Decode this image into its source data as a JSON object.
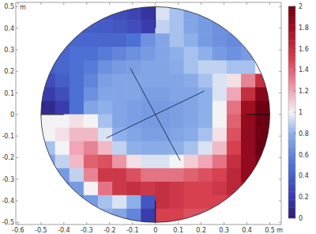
{
  "chart_data": {
    "type": "heatmap",
    "xlabel": "m",
    "ylabel": "m",
    "xlim": [
      -0.61,
      0.55
    ],
    "ylim": [
      -0.51,
      0.52
    ],
    "xticks": [
      -0.6,
      -0.5,
      -0.4,
      -0.3,
      -0.2,
      -0.1,
      0,
      0.1,
      0.2,
      0.3,
      0.4,
      0.5
    ],
    "yticks": [
      -0.5,
      -0.4,
      -0.3,
      -0.2,
      -0.1,
      0,
      0.1,
      0.2,
      0.3,
      0.4,
      0.5
    ],
    "grid": false,
    "x": [
      -0.46875,
      -0.40625,
      -0.34375,
      -0.28125,
      -0.21875,
      -0.15625,
      -0.09375,
      -0.03125,
      0.03125,
      0.09375,
      0.15625,
      0.21875,
      0.28125,
      0.34375,
      0.40625,
      0.46875
    ],
    "y": [
      0.46875,
      0.40625,
      0.34375,
      0.28125,
      0.21875,
      0.15625,
      0.09375,
      0.03125,
      -0.03125,
      -0.09375,
      -0.15625,
      -0.21875,
      -0.28125,
      -0.34375,
      -0.40625,
      -0.46875
    ],
    "cells": [
      [
        null,
        null,
        null,
        null,
        0.35,
        0.3,
        0.25,
        0.15,
        0.95,
        0.85,
        0.75,
        0.7,
        null,
        null,
        null,
        null
      ],
      [
        null,
        0.4,
        0.4,
        0.4,
        0.38,
        0.35,
        0.3,
        0.2,
        0.9,
        0.85,
        0.75,
        0.7,
        0.65,
        0.65,
        0.65,
        null
      ],
      [
        null,
        0.45,
        0.45,
        0.45,
        0.45,
        0.45,
        0.5,
        0.65,
        0.75,
        0.85,
        0.8,
        0.7,
        0.65,
        0.62,
        0.65,
        null
      ],
      [
        null,
        0.45,
        0.5,
        0.5,
        0.55,
        0.6,
        0.65,
        0.7,
        0.75,
        0.8,
        0.85,
        0.8,
        0.7,
        0.65,
        0.7,
        null
      ],
      [
        0.4,
        0.45,
        0.5,
        0.55,
        0.65,
        0.7,
        0.72,
        0.75,
        0.75,
        0.78,
        0.85,
        0.9,
        0.9,
        0.85,
        0.85,
        1.0
      ],
      [
        0.3,
        0.4,
        0.5,
        0.6,
        0.72,
        0.75,
        0.75,
        0.75,
        0.75,
        0.75,
        0.78,
        0.85,
        0.95,
        1.05,
        1.3,
        1.6
      ],
      [
        0.2,
        0.3,
        0.5,
        0.65,
        0.75,
        0.75,
        0.75,
        0.72,
        0.72,
        0.75,
        0.75,
        0.8,
        0.95,
        1.2,
        1.6,
        1.9
      ],
      [
        0.1,
        0.2,
        0.5,
        0.75,
        0.8,
        0.75,
        0.72,
        0.7,
        0.7,
        0.72,
        0.75,
        0.8,
        1.0,
        1.35,
        1.8,
        2.0
      ],
      [
        1.0,
        1.0,
        1.05,
        1.0,
        0.85,
        0.75,
        0.72,
        0.7,
        0.7,
        0.72,
        0.75,
        0.8,
        1.0,
        1.4,
        1.85,
        2.0
      ],
      [
        1.0,
        1.05,
        1.15,
        1.15,
        0.95,
        0.8,
        0.75,
        0.72,
        0.72,
        0.75,
        0.78,
        0.85,
        1.05,
        1.45,
        1.85,
        2.0
      ],
      [
        0.85,
        1.0,
        1.2,
        1.3,
        1.15,
        0.9,
        0.8,
        0.78,
        0.78,
        0.8,
        0.85,
        0.95,
        1.15,
        1.5,
        1.85,
        2.0
      ],
      [
        0.75,
        0.9,
        1.15,
        1.4,
        1.45,
        1.25,
        1.05,
        0.95,
        0.95,
        1.0,
        1.1,
        1.2,
        1.35,
        1.6,
        1.85,
        1.95
      ],
      [
        null,
        0.7,
        0.9,
        1.3,
        1.55,
        1.55,
        1.45,
        1.35,
        1.35,
        1.35,
        1.4,
        1.45,
        1.5,
        1.65,
        1.85,
        null
      ],
      [
        null,
        0.6,
        0.7,
        1.0,
        1.35,
        1.55,
        1.6,
        1.55,
        1.6,
        1.55,
        1.5,
        1.5,
        1.55,
        1.65,
        1.75,
        null
      ],
      [
        null,
        0.55,
        0.6,
        0.7,
        0.85,
        0.95,
        0.8,
        0.35,
        1.6,
        1.55,
        1.5,
        1.5,
        1.5,
        1.55,
        1.6,
        null
      ],
      [
        null,
        null,
        null,
        null,
        0.8,
        0.75,
        0.6,
        0.2,
        1.5,
        1.5,
        1.45,
        1.45,
        null,
        null,
        null,
        null
      ]
    ],
    "colorbar": {
      "range": [
        0,
        2
      ],
      "ticks": [
        0,
        0.2,
        0.4,
        0.6,
        0.8,
        1,
        1.2,
        1.4,
        1.6,
        1.8,
        2
      ]
    }
  }
}
